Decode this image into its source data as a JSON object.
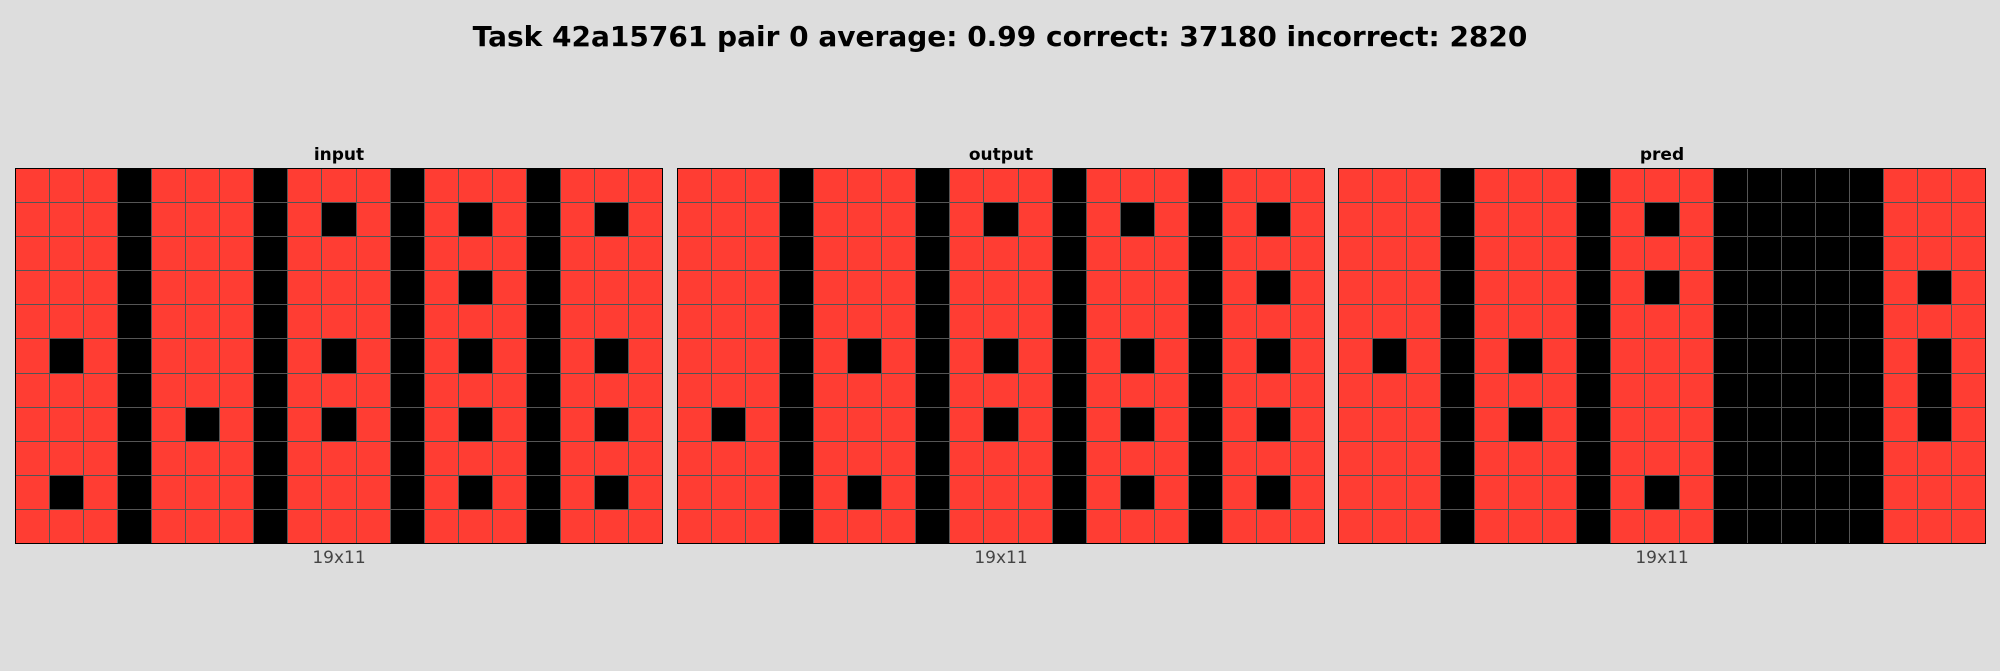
{
  "title": "Task 42a15761 pair 0 average: 0.99 correct: 37180 incorrect: 2820",
  "colors": {
    "red": "#ff3d33",
    "black": "#000000",
    "grid_line": "#555555",
    "background": "#dddddd"
  },
  "panels": [
    {
      "title": "input",
      "caption": "19x11",
      "rows": [
        "RRRKRRRKRRRKRRRKRRR",
        "RRRKRRRKRKRKRKRKRKR",
        "RRRKRRRKRRRKRRRKRRR",
        "RRRKRRRKRRRKRKRKRRR",
        "RRRKRRRKRRRKRRRKRRR",
        "RKRKRRRKRKRKRKRKRKR",
        "RRRKRRRKRRRKRRRKRRR",
        "RRRKRKRKRKRKRKRKRKR",
        "RRRKRRRKRRRKRRRKRRR",
        "RKRKRRRKRRRKRKRKRKR",
        "RRRKRRRKRRRKRRRKRRR"
      ]
    },
    {
      "title": "output",
      "caption": "19x11",
      "rows": [
        "RRRKRRRKRRRKRRRKRRR",
        "RRRKRRRKRKRKRKRKRKR",
        "RRRKRRRKRRRKRRRKRRR",
        "RRRKRRRKRRRKRRRKRKR",
        "RRRKRRRKRRRKRRRKRRR",
        "RRRKRKRKRKRKRKRKRKR",
        "RRRKRRRKRRRKRRRKRRR",
        "RKRKRRRKRKRKRKRKRKR",
        "RRRKRRRKRRRKRRRKRRR",
        "RRRKRKRKRRRKRKRKRKR",
        "RRRKRRRKRRRKRRRKRRR"
      ]
    },
    {
      "title": "pred",
      "caption": "19x11",
      "rows": [
        "RRRKRRRKRRRKKKKKRRR",
        "RRRKRRRKRKRKKKKKRRR",
        "RRRKRRRKRRRKKKKKRRR",
        "RRRKRRRKRKRKKKKKRKR",
        "RRRKRRRKRRRKKKKKRRR",
        "RKRKRKRKRRRKKKKKRKR",
        "RRRKRRRKRRRKKKKKRKR",
        "RRRKRKRKRRRKKKKKRKR",
        "RRRKRRRKRRRKKKKKRRR",
        "RRRKRRRKRKRKKKKKRRR",
        "RRRKRRRKRRRKKKKKRRR"
      ]
    }
  ]
}
